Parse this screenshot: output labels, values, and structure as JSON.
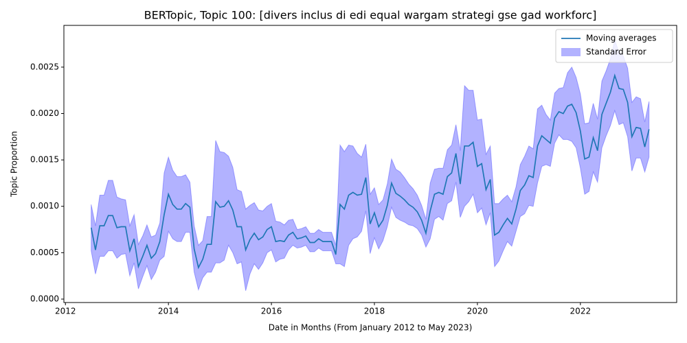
{
  "chart_data": {
    "type": "line",
    "title": "BERTopic, Topic 100: [divers inclus di edi equal wargam strategi gse gad workforc]",
    "x_label": "Date in Months (From January 2012 to May 2023)",
    "y_label": "Topic Proportion",
    "x": [
      2012.5,
      2012.583,
      2012.667,
      2012.75,
      2012.833,
      2012.917,
      2013,
      2013.083,
      2013.167,
      2013.25,
      2013.333,
      2013.417,
      2013.5,
      2013.583,
      2013.667,
      2013.75,
      2013.833,
      2013.917,
      2014,
      2014.083,
      2014.167,
      2014.25,
      2014.333,
      2014.417,
      2014.5,
      2014.583,
      2014.667,
      2014.75,
      2014.833,
      2014.917,
      2015,
      2015.083,
      2015.167,
      2015.25,
      2015.333,
      2015.417,
      2015.5,
      2015.583,
      2015.667,
      2015.75,
      2015.833,
      2015.917,
      2016,
      2016.083,
      2016.167,
      2016.25,
      2016.333,
      2016.417,
      2016.5,
      2016.583,
      2016.667,
      2016.75,
      2016.833,
      2016.917,
      2017,
      2017.083,
      2017.167,
      2017.25,
      2017.333,
      2017.417,
      2017.5,
      2017.583,
      2017.667,
      2017.75,
      2017.833,
      2017.917,
      2018,
      2018.083,
      2018.167,
      2018.25,
      2018.333,
      2018.417,
      2018.5,
      2018.583,
      2018.667,
      2018.75,
      2018.833,
      2018.917,
      2019,
      2019.083,
      2019.167,
      2019.25,
      2019.333,
      2019.417,
      2019.5,
      2019.583,
      2019.667,
      2019.75,
      2019.833,
      2019.917,
      2020,
      2020.083,
      2020.167,
      2020.25,
      2020.333,
      2020.417,
      2020.5,
      2020.583,
      2020.667,
      2020.75,
      2020.833,
      2020.917,
      2021,
      2021.083,
      2021.167,
      2021.25,
      2021.333,
      2021.417,
      2021.5,
      2021.583,
      2021.667,
      2021.75,
      2021.833,
      2021.917,
      2022,
      2022.083,
      2022.167,
      2022.25,
      2022.333,
      2022.417,
      2022.5,
      2022.583,
      2022.667,
      2022.75,
      2022.833,
      2022.917,
      2023,
      2023.083,
      2023.167,
      2023.25,
      2023.333
    ],
    "series": [
      {
        "name": "Moving averages",
        "color": "#1f77b4",
        "values": [
          0.00077,
          0.00053,
          0.00079,
          0.00079,
          0.0009,
          0.0009,
          0.00077,
          0.00078,
          0.00078,
          0.00052,
          0.00065,
          0.00035,
          0.00046,
          0.00058,
          0.00044,
          0.00049,
          0.00062,
          0.00091,
          0.00113,
          0.00102,
          0.00097,
          0.00097,
          0.00103,
          0.00099,
          0.00054,
          0.00034,
          0.00043,
          0.00059,
          0.00059,
          0.00105,
          0.00099,
          0.001,
          0.00106,
          0.00096,
          0.00078,
          0.00078,
          0.00053,
          0.00064,
          0.00071,
          0.00064,
          0.00067,
          0.00075,
          0.00078,
          0.00062,
          0.00063,
          0.00062,
          0.00069,
          0.00072,
          0.00065,
          0.00066,
          0.00068,
          0.00061,
          0.00061,
          0.00065,
          0.00062,
          0.00062,
          0.00062,
          0.00048,
          0.00102,
          0.00097,
          0.00112,
          0.00115,
          0.00112,
          0.00113,
          0.00131,
          0.00081,
          0.00093,
          0.00078,
          0.00085,
          0.00101,
          0.00125,
          0.00114,
          0.00111,
          0.00107,
          0.00102,
          0.00099,
          0.00094,
          0.00085,
          0.00071,
          0.00095,
          0.00113,
          0.00115,
          0.00113,
          0.00132,
          0.00136,
          0.00157,
          0.00124,
          0.00165,
          0.00165,
          0.00169,
          0.00143,
          0.00146,
          0.00118,
          0.00129,
          0.00069,
          0.00072,
          0.0008,
          0.00087,
          0.00081,
          0.00097,
          0.00117,
          0.00123,
          0.00133,
          0.00131,
          0.00165,
          0.00176,
          0.00172,
          0.00168,
          0.00195,
          0.00202,
          0.002,
          0.00208,
          0.0021,
          0.00201,
          0.00181,
          0.00151,
          0.00153,
          0.00174,
          0.0016,
          0.00199,
          0.00211,
          0.00223,
          0.00241,
          0.00227,
          0.00226,
          0.00212,
          0.00175,
          0.00185,
          0.00184,
          0.00164,
          0.00183
        ]
      },
      {
        "name": "Standard Error",
        "color": "#0000ff",
        "values": [
          0.00025,
          0.00026,
          0.00033,
          0.00033,
          0.00038,
          0.00038,
          0.00033,
          0.0003,
          0.00029,
          0.00027,
          0.00026,
          0.00024,
          0.00022,
          0.00022,
          0.00023,
          0.0002,
          0.0002,
          0.00045,
          0.0004,
          0.00037,
          0.00035,
          0.00035,
          0.00031,
          0.00027,
          0.00025,
          0.00024,
          0.0002,
          0.0003,
          0.0003,
          0.00066,
          0.0006,
          0.00058,
          0.00048,
          0.00046,
          0.0004,
          0.00038,
          0.00044,
          0.00037,
          0.00033,
          0.00032,
          0.00028,
          0.00025,
          0.00025,
          0.00022,
          0.0002,
          0.00018,
          0.00016,
          0.00014,
          0.0001,
          0.0001,
          0.0001,
          0.0001,
          0.0001,
          0.0001,
          0.0001,
          0.0001,
          0.0001,
          0.0001,
          0.00064,
          0.00062,
          0.00054,
          0.0005,
          0.00045,
          0.0004,
          0.00036,
          0.00032,
          0.00027,
          0.00024,
          0.00022,
          0.00023,
          0.00026,
          0.00026,
          0.00026,
          0.00024,
          0.00022,
          0.0002,
          0.00018,
          0.00016,
          0.00015,
          0.0003,
          0.00027,
          0.00026,
          0.00028,
          0.00029,
          0.0003,
          0.00031,
          0.00036,
          0.00065,
          0.0006,
          0.00056,
          0.0005,
          0.00048,
          0.00038,
          0.00036,
          0.00034,
          0.00031,
          0.00028,
          0.00025,
          0.00024,
          0.00024,
          0.00028,
          0.00031,
          0.00032,
          0.00031,
          0.0004,
          0.00033,
          0.00027,
          0.00025,
          0.00027,
          0.00025,
          0.00028,
          0.00036,
          0.0004,
          0.00038,
          0.0004,
          0.00038,
          0.00037,
          0.00037,
          0.00034,
          0.00036,
          0.00035,
          0.00036,
          0.00038,
          0.00039,
          0.00036,
          0.00037,
          0.00037,
          0.00033,
          0.00032,
          0.00027,
          0.0003
        ]
      }
    ],
    "xlim": [
      2011.97,
      2023.87
    ],
    "ylim": [
      -3.7e-05,
      0.00295
    ],
    "xticks": [
      2012,
      2014,
      2016,
      2018,
      2020,
      2022
    ],
    "yticks": [
      {
        "value": 0,
        "label": "0.0000"
      },
      {
        "value": 0.0005,
        "label": "0.0005"
      },
      {
        "value": 0.001,
        "label": "0.0010"
      },
      {
        "value": 0.0015,
        "label": "0.0015"
      },
      {
        "value": 0.002,
        "label": "0.0020"
      },
      {
        "value": 0.0025,
        "label": "0.0025"
      }
    ],
    "legend": "upper right"
  }
}
